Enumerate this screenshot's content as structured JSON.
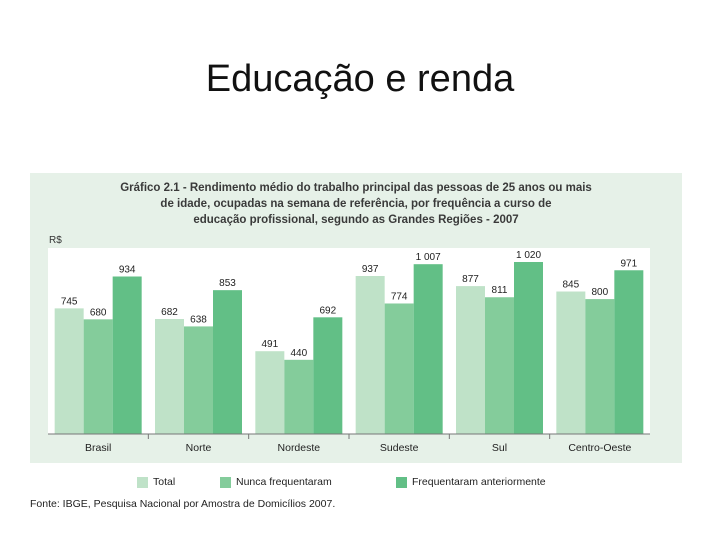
{
  "slide": {
    "title": "Educação e renda"
  },
  "figure": {
    "caption_lines": [
      "Gráfico 2.1 - Rendimento médio do trabalho principal das pessoas de 25 anos ou mais",
      "de idade, ocupadas na semana de referência, por frequência a curso de",
      "educação profissional, segundo as Grandes Regiões - 2007"
    ],
    "source": "Fonte: IBGE, Pesquisa Nacional por Amostra de Domicílios 2007."
  },
  "chart_data": {
    "type": "bar",
    "title": "Gráfico 2.1 - Rendimento médio do trabalho principal das pessoas de 25 anos ou mais de idade, ocupadas na semana de referência, por frequência a curso de educação profissional, segundo as Grandes Regiões - 2007",
    "ylabel": "R$",
    "xlabel": "",
    "categories": [
      "Brasil",
      "Norte",
      "Nordeste",
      "Sudeste",
      "Sul",
      "Centro-Oeste"
    ],
    "series": [
      {
        "name": "Total",
        "values": [
          745,
          682,
          491,
          937,
          877,
          845
        ],
        "labels": [
          "745",
          "682",
          "491",
          "937",
          "877",
          "845"
        ],
        "color": "#bfe2c8"
      },
      {
        "name": "Nunca frequentaram",
        "values": [
          680,
          638,
          440,
          774,
          811,
          800
        ],
        "labels": [
          "680",
          "638",
          "440",
          "774",
          "811",
          "800"
        ],
        "color": "#84cc9b"
      },
      {
        "name": "Frequentaram anteriormente",
        "values": [
          934,
          853,
          692,
          1007,
          1020,
          971
        ],
        "labels": [
          "934",
          "853",
          "692",
          "1 007",
          "1 020",
          "971"
        ],
        "color": "#62bf86"
      }
    ],
    "ylim": [
      0,
      1100
    ],
    "grid": false,
    "legend_position": "bottom"
  }
}
